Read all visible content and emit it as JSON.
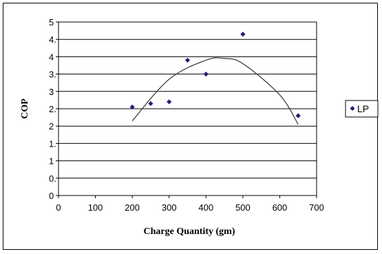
{
  "chart_data": {
    "type": "scatter",
    "xlabel": "Charge Quantity (gm)",
    "ylabel": "COP",
    "x_ticks": [
      "0",
      "100",
      "200",
      "300",
      "400",
      "500",
      "600",
      "700"
    ],
    "y_ticks": [
      "0",
      "0.",
      "1",
      "1.",
      "2",
      "2.",
      "3",
      "3.",
      "4",
      "4.",
      "5"
    ],
    "xlim": [
      0,
      700
    ],
    "ylim": [
      0,
      5
    ],
    "grid": "horizontal",
    "legend_position": "right",
    "series": [
      {
        "name": "LP",
        "color": "#1f1f7a",
        "marker": "diamond",
        "points": [
          {
            "x": 200,
            "y": 2.55
          },
          {
            "x": 250,
            "y": 2.65
          },
          {
            "x": 300,
            "y": 2.7
          },
          {
            "x": 350,
            "y": 3.9
          },
          {
            "x": 400,
            "y": 3.5
          },
          {
            "x": 500,
            "y": 4.65
          },
          {
            "x": 650,
            "y": 2.3
          }
        ]
      }
    ],
    "trendline": {
      "type": "polynomial",
      "color": "#404040",
      "x_start": 200,
      "x_end": 650,
      "points": [
        {
          "x": 200,
          "y": 2.15
        },
        {
          "x": 300,
          "y": 3.35
        },
        {
          "x": 400,
          "y": 3.9
        },
        {
          "x": 450,
          "y": 3.95
        },
        {
          "x": 500,
          "y": 3.8
        },
        {
          "x": 600,
          "y": 2.9
        },
        {
          "x": 650,
          "y": 2.05
        }
      ]
    }
  }
}
